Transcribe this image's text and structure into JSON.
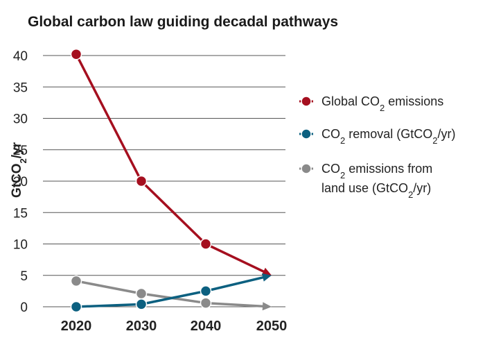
{
  "chart_data": {
    "type": "line",
    "title": "Global carbon law guiding decadal pathways",
    "ylabel": "GtCO2/yr",
    "xlabel": "",
    "x": [
      "2020",
      "2030",
      "2040",
      "2050"
    ],
    "ylim": [
      0,
      40
    ],
    "yticks": [
      0,
      5,
      10,
      15,
      20,
      25,
      30,
      35,
      40
    ],
    "grid": "horizontal",
    "legend_position": "right",
    "series": [
      {
        "name": "Global CO2 emissions",
        "values": [
          40.2,
          20,
          10,
          5
        ],
        "color": "#a50f1f"
      },
      {
        "name": "CO2 removal (GtCO2/yr)",
        "values": [
          0,
          0.4,
          2.5,
          5
        ],
        "color": "#0c6080"
      },
      {
        "name": "CO2 emissions from land use (GtCO2/yr)",
        "values": [
          4.1,
          2.1,
          0.6,
          0
        ],
        "color": "#8a8a8a"
      }
    ]
  }
}
